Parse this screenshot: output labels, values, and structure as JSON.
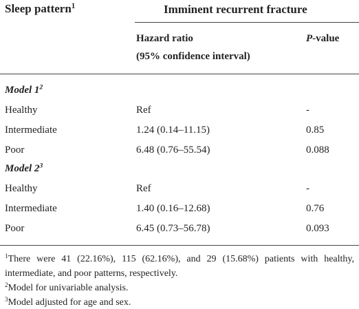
{
  "header": {
    "col1": "Sleep pattern",
    "col1_sup": "1",
    "group": "Imminent recurrent fracture",
    "hr": "Hazard ratio",
    "hr_ci": "(95% confidence interval)",
    "p_italic": "P",
    "p_rest": "-value"
  },
  "sections": [
    {
      "label": "Model 1",
      "sup": "2",
      "rows": [
        [
          "Healthy",
          "Ref",
          "-"
        ],
        [
          "Intermediate",
          "1.24 (0.14–11.15)",
          "0.85"
        ],
        [
          "Poor",
          "6.48 (0.76–55.54)",
          "0.088"
        ]
      ]
    },
    {
      "label": "Model 2",
      "sup": "3",
      "rows": [
        [
          "Healthy",
          "Ref",
          "-"
        ],
        [
          "Intermediate",
          "1.40 (0.16–12.68)",
          "0.76"
        ],
        [
          "Poor",
          "6.45 (0.73–56.78)",
          "0.093"
        ]
      ]
    }
  ],
  "footnotes": [
    {
      "mark": "1",
      "text": "There were 41 (22.16%), 115 (62.16%), and 29 (15.68%) patients with healthy, intermediate, and poor patterns, respectively."
    },
    {
      "mark": "2",
      "text": "Model for univariable analysis."
    },
    {
      "mark": "3",
      "text": "Model adjusted for age and sex."
    }
  ]
}
